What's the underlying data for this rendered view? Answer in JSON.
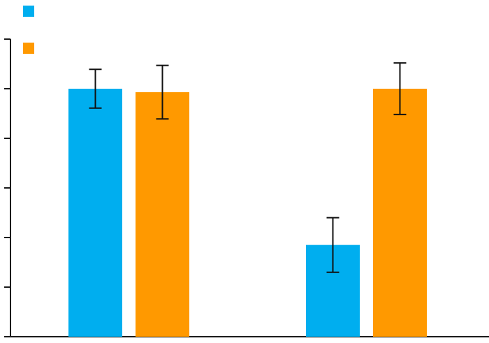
{
  "chart_data": {
    "type": "bar",
    "title": "",
    "xlabel": "",
    "ylabel": "",
    "ylim": [
      0,
      6
    ],
    "yticks": [
      0,
      1,
      2,
      3,
      4,
      5,
      6
    ],
    "grid": false,
    "legend_position": "top-left",
    "categories": [
      "",
      ""
    ],
    "series": [
      {
        "color": "#00AEEF",
        "values": [
          5.0,
          1.85
        ],
        "error": [
          0.39,
          0.55
        ]
      },
      {
        "color": "#FF9900",
        "values": [
          4.93,
          5.0
        ],
        "error": [
          0.54,
          0.52
        ]
      }
    ]
  }
}
